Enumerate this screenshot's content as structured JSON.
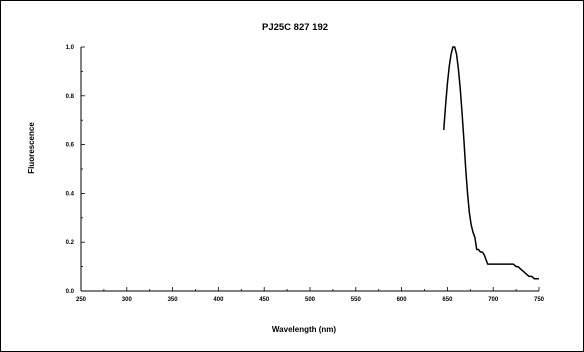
{
  "chart_data": {
    "type": "line",
    "title": "PJ25C 827 192",
    "xlabel": "Wavelength (nm)",
    "ylabel": "Fluorescence",
    "xlim": [
      250,
      750
    ],
    "ylim": [
      0.0,
      1.0
    ],
    "x_ticks": [
      "250",
      "300",
      "350",
      "400",
      "450",
      "500",
      "550",
      "600",
      "650",
      "700",
      "750"
    ],
    "y_ticks": [
      "0.0",
      "0.2",
      "0.4",
      "0.6",
      "0.8",
      "1.0"
    ],
    "grid": false,
    "series": [
      {
        "color": "#000000",
        "x": [
          646,
          648,
          650,
          652,
          654,
          656,
          658,
          660,
          662,
          664,
          666,
          668,
          670,
          672,
          674,
          676,
          678,
          680,
          682,
          684,
          686,
          688,
          690,
          692,
          694,
          696,
          698,
          700,
          705,
          710,
          715,
          720,
          722,
          725,
          727,
          730,
          733,
          736,
          739,
          742,
          745,
          748,
          750
        ],
        "y": [
          0.66,
          0.76,
          0.85,
          0.92,
          0.97,
          1.0,
          1.0,
          0.97,
          0.91,
          0.83,
          0.73,
          0.62,
          0.5,
          0.4,
          0.32,
          0.27,
          0.24,
          0.22,
          0.17,
          0.17,
          0.16,
          0.16,
          0.15,
          0.13,
          0.11,
          0.11,
          0.11,
          0.11,
          0.11,
          0.11,
          0.11,
          0.11,
          0.11,
          0.1,
          0.1,
          0.09,
          0.08,
          0.07,
          0.06,
          0.06,
          0.05,
          0.05,
          0.05
        ]
      }
    ]
  }
}
